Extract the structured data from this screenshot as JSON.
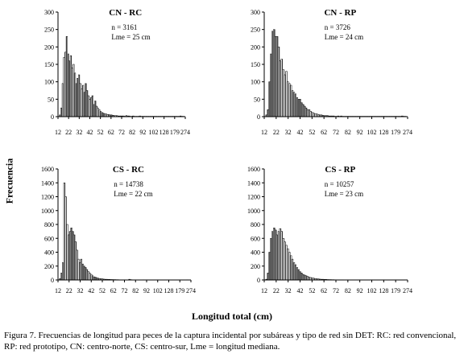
{
  "figure": {
    "ylabel": "Frecuencia",
    "xlabel": "Longitud total (cm)",
    "caption": "Figura 7. Frecuencias de longitud para peces de la captura incidental por subáreas y tipo de red sin DET: RC: red convencional, RP: red prototipo, CN: centro-norte, CS: centro-sur, Lme = longitud mediana."
  },
  "chart_data": [
    {
      "type": "bar",
      "title": "CN - RC",
      "annotations": [
        "n = 3161",
        "Lme = 25 cm"
      ],
      "ylim": [
        0,
        300
      ],
      "yticks": [
        "0",
        "50",
        "100",
        "150",
        "200",
        "250",
        "300"
      ],
      "xticks": [
        "12",
        "22",
        "32",
        "42",
        "52",
        "62",
        "72",
        "82",
        "92",
        "102",
        "128",
        "179",
        "274"
      ],
      "x": [
        12,
        13,
        14,
        15,
        16,
        17,
        18,
        19,
        20,
        21,
        22,
        23,
        24,
        25,
        26,
        27,
        28,
        29,
        30,
        31,
        32,
        33,
        34,
        35,
        36,
        37,
        38,
        39,
        40,
        41,
        42,
        43,
        44,
        45,
        46,
        47,
        48,
        49,
        50,
        51,
        52,
        53,
        54,
        55,
        56,
        57,
        58,
        59,
        60,
        61,
        62,
        63,
        64,
        65,
        66,
        67,
        68,
        69,
        70,
        71,
        72,
        73,
        74,
        75,
        76,
        77,
        78,
        79,
        80,
        81,
        82,
        83,
        84,
        85,
        86,
        87,
        88,
        89,
        90,
        91,
        92,
        93,
        94,
        95,
        96,
        97,
        98,
        99,
        100,
        101,
        102,
        128,
        179,
        274
      ],
      "values": [
        0,
        5,
        25,
        95,
        170,
        185,
        230,
        180,
        160,
        175,
        140,
        150,
        125,
        95,
        110,
        120,
        95,
        80,
        90,
        70,
        95,
        75,
        60,
        50,
        55,
        60,
        35,
        45,
        30,
        25,
        20,
        15,
        12,
        10,
        8,
        8,
        6,
        6,
        5,
        5,
        4,
        3,
        3,
        3,
        2,
        2,
        2,
        2,
        2,
        1,
        3,
        2,
        2,
        1,
        1,
        2,
        1,
        1,
        1,
        1,
        2,
        1,
        1,
        1,
        1,
        1,
        1,
        1,
        1,
        1,
        1,
        1,
        1,
        1,
        1,
        1,
        1,
        1,
        1,
        1,
        1,
        1,
        1,
        1,
        1,
        1,
        1,
        1,
        1,
        1,
        2,
        1,
        1,
        0
      ]
    },
    {
      "type": "bar",
      "title": "CN - RP",
      "annotations": [
        "n = 3726",
        "Lme = 24 cm"
      ],
      "ylim": [
        0,
        300
      ],
      "yticks": [
        "0",
        "50",
        "100",
        "150",
        "200",
        "250",
        "300"
      ],
      "xticks": [
        "12",
        "22",
        "32",
        "42",
        "52",
        "62",
        "72",
        "82",
        "92",
        "102",
        "128",
        "179",
        "274"
      ],
      "x": [
        12,
        13,
        14,
        15,
        16,
        17,
        18,
        19,
        20,
        21,
        22,
        23,
        24,
        25,
        26,
        27,
        28,
        29,
        30,
        31,
        32,
        33,
        34,
        35,
        36,
        37,
        38,
        39,
        40,
        41,
        42,
        43,
        44,
        45,
        46,
        47,
        48,
        49,
        50,
        51,
        52,
        53,
        54,
        55,
        56,
        57,
        58,
        59,
        60,
        61,
        62,
        63,
        64,
        65,
        66,
        67,
        68,
        69,
        70,
        71,
        72,
        73,
        74,
        75,
        76,
        77,
        78,
        79,
        80,
        81,
        82,
        83,
        84,
        85,
        86,
        87,
        88,
        89,
        90,
        91,
        92,
        93,
        94,
        95,
        96,
        97,
        98,
        99,
        100,
        101,
        102,
        128,
        179,
        274
      ],
      "values": [
        0,
        5,
        20,
        100,
        180,
        245,
        250,
        230,
        230,
        200,
        160,
        165,
        135,
        120,
        130,
        100,
        95,
        90,
        75,
        70,
        65,
        55,
        50,
        50,
        40,
        35,
        30,
        25,
        20,
        20,
        15,
        12,
        10,
        8,
        8,
        6,
        5,
        5,
        4,
        3,
        3,
        3,
        2,
        2,
        2,
        2,
        1,
        1,
        2,
        1,
        2,
        1,
        1,
        1,
        1,
        1,
        1,
        1,
        1,
        1,
        1,
        1,
        1,
        1,
        1,
        1,
        1,
        1,
        1,
        1,
        1,
        1,
        1,
        1,
        1,
        1,
        1,
        1,
        1,
        1,
        1,
        1,
        1,
        1,
        1,
        1,
        1,
        1,
        1,
        1,
        2,
        1,
        1,
        0
      ]
    },
    {
      "type": "bar",
      "title": "CS - RC",
      "annotations": [
        "n = 14738",
        "Lme = 22 cm"
      ],
      "ylim": [
        0,
        1600
      ],
      "yticks": [
        "0",
        "200",
        "400",
        "600",
        "800",
        "1000",
        "1200",
        "1400",
        "1600"
      ],
      "xticks": [
        "12",
        "22",
        "32",
        "42",
        "52",
        "62",
        "72",
        "82",
        "92",
        "102",
        "128",
        "179",
        "274"
      ],
      "x": [
        12,
        13,
        14,
        15,
        16,
        17,
        18,
        19,
        20,
        21,
        22,
        23,
        24,
        25,
        26,
        27,
        28,
        29,
        30,
        31,
        32,
        33,
        34,
        35,
        36,
        37,
        38,
        39,
        40,
        41,
        42,
        43,
        44,
        45,
        46,
        47,
        48,
        49,
        50,
        51,
        52,
        53,
        54,
        55,
        56,
        57,
        58,
        59,
        60,
        61,
        62,
        63,
        64,
        65,
        66,
        67,
        68,
        69,
        70,
        71,
        72,
        73,
        74,
        75,
        76,
        77,
        78,
        79,
        80,
        81,
        82,
        83,
        84,
        85,
        86,
        87,
        88,
        89,
        90,
        91,
        92,
        93,
        94,
        95,
        96,
        97,
        98,
        99,
        100,
        101,
        102,
        128,
        179,
        274
      ],
      "values": [
        0,
        20,
        100,
        250,
        1400,
        1200,
        800,
        650,
        700,
        750,
        700,
        650,
        550,
        430,
        300,
        250,
        300,
        230,
        200,
        180,
        150,
        120,
        100,
        80,
        60,
        45,
        40,
        30,
        25,
        20,
        20,
        15,
        12,
        10,
        10,
        8,
        8,
        6,
        6,
        5,
        5,
        4,
        4,
        3,
        3,
        3,
        3,
        3,
        2,
        2,
        10,
        5,
        3,
        2,
        2,
        2,
        2,
        2,
        2,
        2,
        3,
        2,
        2,
        2,
        2,
        2,
        2,
        2,
        2,
        2,
        2,
        2,
        2,
        2,
        2,
        2,
        2,
        2,
        2,
        2,
        2,
        2,
        2,
        2,
        2,
        2,
        2,
        2,
        2,
        2,
        2,
        3,
        2,
        0
      ]
    },
    {
      "type": "bar",
      "title": "CS - RP",
      "annotations": [
        "n = 10257",
        "Lme = 23 cm"
      ],
      "ylim": [
        0,
        1600
      ],
      "yticks": [
        "0",
        "200",
        "400",
        "600",
        "800",
        "1000",
        "1200",
        "1400",
        "1600"
      ],
      "xticks": [
        "12",
        "22",
        "32",
        "42",
        "52",
        "62",
        "72",
        "82",
        "92",
        "102",
        "128",
        "179",
        "274"
      ],
      "x": [
        12,
        13,
        14,
        15,
        16,
        17,
        18,
        19,
        20,
        21,
        22,
        23,
        24,
        25,
        26,
        27,
        28,
        29,
        30,
        31,
        32,
        33,
        34,
        35,
        36,
        37,
        38,
        39,
        40,
        41,
        42,
        43,
        44,
        45,
        46,
        47,
        48,
        49,
        50,
        51,
        52,
        53,
        54,
        55,
        56,
        57,
        58,
        59,
        60,
        61,
        62,
        63,
        64,
        65,
        66,
        67,
        68,
        69,
        70,
        71,
        72,
        73,
        74,
        75,
        76,
        77,
        78,
        79,
        80,
        81,
        82,
        83,
        84,
        85,
        86,
        87,
        88,
        89,
        90,
        91,
        92,
        93,
        94,
        95,
        96,
        97,
        98,
        99,
        100,
        101,
        102,
        128,
        179,
        274
      ],
      "values": [
        0,
        10,
        100,
        400,
        600,
        700,
        750,
        720,
        650,
        700,
        740,
        700,
        600,
        550,
        500,
        450,
        400,
        350,
        300,
        250,
        220,
        180,
        150,
        120,
        100,
        80,
        70,
        60,
        50,
        40,
        35,
        30,
        25,
        20,
        18,
        15,
        12,
        10,
        10,
        8,
        8,
        6,
        5,
        5,
        4,
        4,
        3,
        3,
        3,
        3,
        3,
        3,
        2,
        2,
        2,
        2,
        2,
        2,
        2,
        2,
        2,
        2,
        2,
        2,
        2,
        2,
        2,
        2,
        2,
        2,
        2,
        2,
        2,
        2,
        2,
        2,
        2,
        2,
        2,
        2,
        2,
        2,
        2,
        2,
        2,
        2,
        2,
        2,
        2,
        2,
        2,
        2,
        2,
        0
      ]
    }
  ]
}
